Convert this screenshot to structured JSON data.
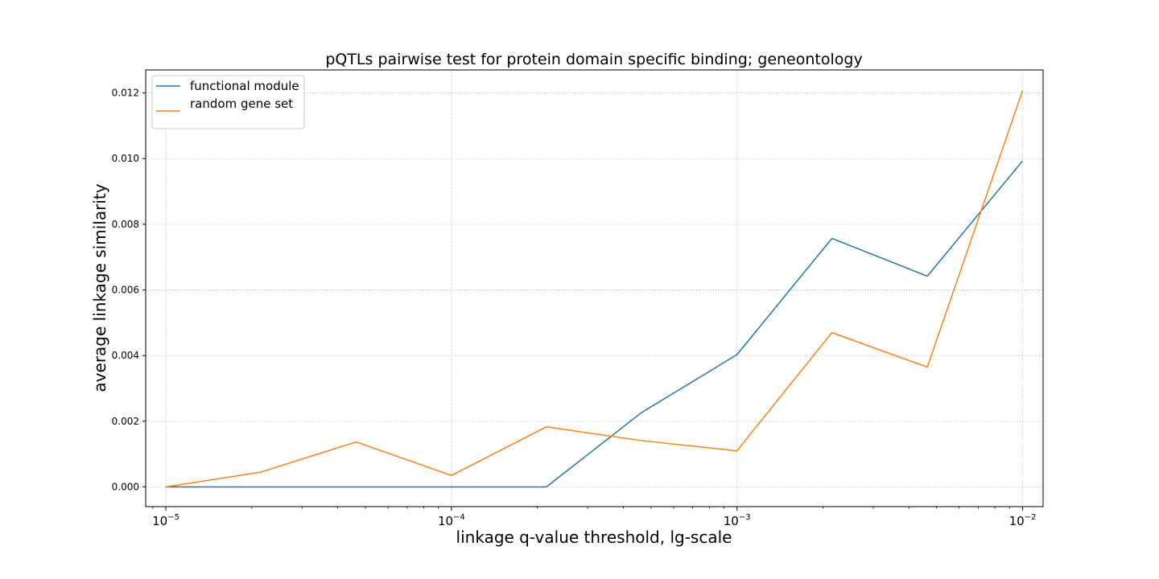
{
  "chart_data": {
    "type": "line",
    "title": "pQTLs pairwise test for protein domain specific binding; geneontology",
    "xlabel": "linkage q-value threshold, lg-scale",
    "ylabel": "average linkage similarity",
    "xscale": "log",
    "xlim": [
      8.5e-06,
      0.0118
    ],
    "ylim": [
      -0.0006,
      0.0127
    ],
    "grid": true,
    "legend": "upper-left",
    "x": [
      1e-05,
      2.15e-05,
      4.64e-05,
      0.0001,
      0.000215,
      0.000464,
      0.001,
      0.00215,
      0.00464,
      0.01
    ],
    "xticks": [
      {
        "value": 1e-05,
        "label_base": "10",
        "label_exp": "−5"
      },
      {
        "value": 0.0001,
        "label_base": "10",
        "label_exp": "−4"
      },
      {
        "value": 0.001,
        "label_base": "10",
        "label_exp": "−3"
      },
      {
        "value": 0.01,
        "label_base": "10",
        "label_exp": "−2"
      }
    ],
    "yticks": [
      {
        "value": 0.0,
        "label": "0.000"
      },
      {
        "value": 0.002,
        "label": "0.002"
      },
      {
        "value": 0.004,
        "label": "0.004"
      },
      {
        "value": 0.006,
        "label": "0.006"
      },
      {
        "value": 0.008,
        "label": "0.008"
      },
      {
        "value": 0.01,
        "label": "0.010"
      },
      {
        "value": 0.012,
        "label": "0.012"
      }
    ],
    "series": [
      {
        "name": "functional module",
        "color": "#1f77b4",
        "values": [
          0.0,
          0.0,
          0.0,
          0.0,
          0.0,
          0.00227,
          0.00403,
          0.00757,
          0.00642,
          0.00993
        ]
      },
      {
        "name": "random gene set",
        "color": "#ff7f0e",
        "values": [
          0.0,
          0.00045,
          0.00137,
          0.00035,
          0.00183,
          0.00141,
          0.0011,
          0.0047,
          0.00365,
          0.01207
        ]
      }
    ]
  }
}
